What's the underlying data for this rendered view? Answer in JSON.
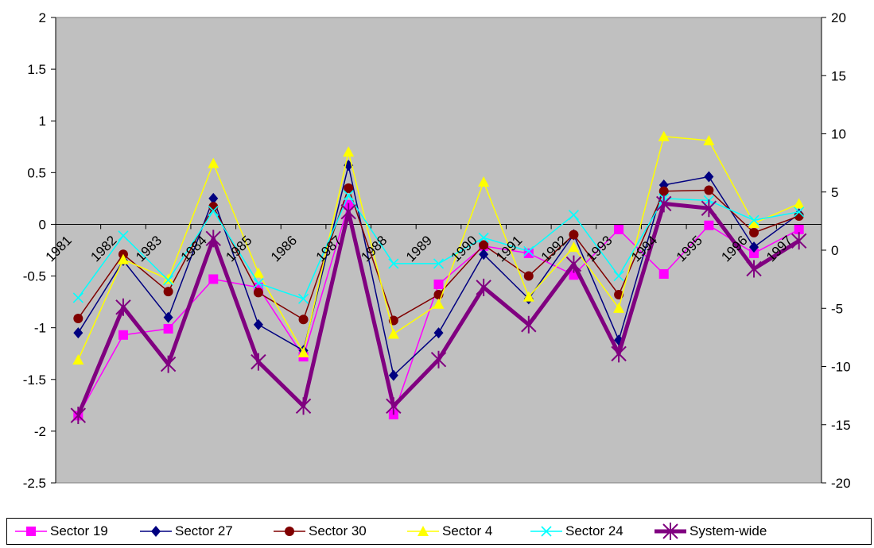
{
  "chart_data": {
    "type": "line",
    "categories": [
      "1981",
      "1982",
      "1983",
      "1984",
      "1985",
      "1986",
      "1987",
      "1988",
      "1989",
      "1990",
      "1991",
      "1992",
      "1993",
      "1994",
      "1995",
      "1996",
      "1997"
    ],
    "left_axis": {
      "ylim": [
        -2.5,
        2
      ],
      "ticks": [
        "2",
        "1.5",
        "1",
        "0.5",
        "0",
        "-0.5",
        "-1",
        "-1.5",
        "-2",
        "-2.5"
      ]
    },
    "right_axis": {
      "ylim": [
        -20,
        20
      ],
      "ticks": [
        "20",
        "15",
        "10",
        "5",
        "0",
        "-5",
        "-10",
        "-15",
        "-20"
      ]
    },
    "plot_background": "#c0c0c0",
    "legend_position": "bottom",
    "series": [
      {
        "name": "Sector 19",
        "color": "#ff00ff",
        "marker": "square",
        "axis": "left",
        "values": [
          -1.85,
          -1.07,
          -1.01,
          -0.53,
          -0.61,
          -1.28,
          0.19,
          -1.84,
          -0.58,
          -0.21,
          -0.28,
          -0.49,
          -0.05,
          -0.48,
          -0.01,
          -0.28,
          -0.05
        ]
      },
      {
        "name": "Sector 27",
        "color": "#000080",
        "marker": "diamond",
        "axis": "left",
        "values": [
          -1.05,
          -0.35,
          -0.9,
          0.25,
          -0.97,
          -1.22,
          0.57,
          -1.46,
          -1.05,
          -0.29,
          -0.72,
          -0.1,
          -1.12,
          0.38,
          0.46,
          -0.22,
          0.1
        ]
      },
      {
        "name": "Sector 30",
        "color": "#800000",
        "marker": "circle",
        "axis": "left",
        "values": [
          -0.91,
          -0.29,
          -0.65,
          0.17,
          -0.66,
          -0.92,
          0.35,
          -0.93,
          -0.68,
          -0.2,
          -0.5,
          -0.1,
          -0.68,
          0.32,
          0.33,
          -0.08,
          0.08
        ]
      },
      {
        "name": "Sector 4",
        "color": "#ffff00",
        "marker": "triangle",
        "axis": "left",
        "values": [
          -1.31,
          -0.34,
          -0.53,
          0.59,
          -0.47,
          -1.24,
          0.7,
          -1.06,
          -0.77,
          0.41,
          -0.7,
          -0.22,
          -0.81,
          0.85,
          0.81,
          0.01,
          0.2
        ]
      },
      {
        "name": "Sector 24",
        "color": "#00ffff",
        "marker": "x",
        "axis": "left",
        "values": [
          -0.71,
          -0.11,
          -0.54,
          0.13,
          -0.57,
          -0.72,
          0.28,
          -0.38,
          -0.38,
          -0.13,
          -0.26,
          0.09,
          -0.5,
          0.25,
          0.23,
          0.04,
          0.12
        ]
      },
      {
        "name": "System-wide",
        "color": "#800080",
        "marker": "star",
        "axis": "right",
        "values": [
          -14.2,
          -4.9,
          -9.8,
          1.0,
          -9.6,
          -13.4,
          3.3,
          -13.4,
          -9.4,
          -3.2,
          -6.4,
          -1.2,
          -8.9,
          4.0,
          3.6,
          -1.6,
          0.8
        ]
      }
    ]
  }
}
